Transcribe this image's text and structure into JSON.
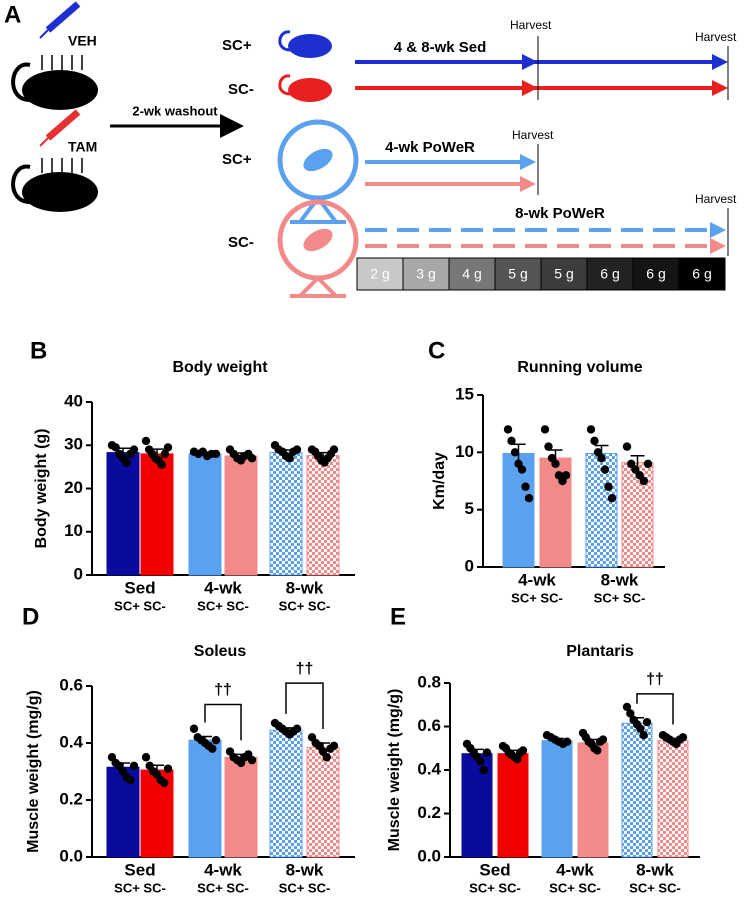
{
  "diagram": {
    "label": "A",
    "treatments": [
      "VEH",
      "TAM"
    ],
    "washout": "2-wk washout",
    "groups": [
      "SC+",
      "SC-",
      "SC+",
      "SC-"
    ],
    "arms": [
      "4 & 8-wk Sed",
      "4-wk PoWeR",
      "8-wk PoWeR"
    ],
    "harvest": [
      "Harvest",
      "Harvest",
      "Harvest",
      "Harvest"
    ],
    "schedule": [
      "2 g",
      "3 g",
      "4 g",
      "5 g",
      "5 g",
      "6 g",
      "6 g",
      "6 g"
    ]
  },
  "chart_data": [
    {
      "type": "bar",
      "panel": "B",
      "title": "Body weight",
      "ylabel": "Body weight (g)",
      "ylim": [
        0,
        40
      ],
      "yticks": [
        0,
        10,
        20,
        30,
        40
      ],
      "groups": [
        "Sed",
        "4-wk",
        "8-wk"
      ],
      "group_sublabels": [
        "SC+ SC-",
        "SC+ SC-",
        "SC+ SC-"
      ],
      "values": [
        28.3,
        28,
        28,
        27.5,
        28.3,
        27.6
      ],
      "errors": [
        1,
        1.1,
        0.4,
        0.7,
        0.6,
        0.7
      ],
      "colors": [
        "#0a0a9c",
        "#f20000",
        "#5aa2f0",
        "#f28a8a",
        "#5aa2f0",
        "#f28a8a"
      ],
      "patterned": [
        false,
        false,
        false,
        false,
        true,
        true
      ],
      "points": [
        [
          30,
          29.5,
          28,
          27,
          26,
          28,
          29
        ],
        [
          31,
          29,
          28,
          27,
          26.5,
          25.5,
          28,
          29.5
        ],
        [
          28.5,
          28,
          28.5,
          27.5,
          28,
          28
        ],
        [
          29,
          28,
          27,
          26.5,
          27.5,
          28,
          27
        ],
        [
          30,
          29,
          28.5,
          27.5,
          27,
          28.5,
          29
        ],
        [
          29,
          28.5,
          27.5,
          26.5,
          26,
          27,
          28,
          29
        ]
      ],
      "annotations": []
    },
    {
      "type": "bar",
      "panel": "C",
      "title": "Running volume",
      "ylabel": "Km/day",
      "ylim": [
        0,
        15
      ],
      "yticks": [
        0,
        5,
        10,
        15
      ],
      "groups": [
        "4-wk",
        "8-wk"
      ],
      "group_sublabels": [
        "SC+ SC-",
        "SC+ SC-"
      ],
      "values": [
        9.9,
        9.5,
        9.9,
        9.1
      ],
      "errors": [
        0.8,
        0.7,
        0.7,
        0.6
      ],
      "colors": [
        "#5aa2f0",
        "#f28a8a",
        "#5aa2f0",
        "#f28a8a"
      ],
      "patterned": [
        false,
        false,
        true,
        true
      ],
      "points": [
        [
          12,
          11,
          10,
          9,
          8.5,
          7,
          6
        ],
        [
          12,
          10.5,
          9.5,
          9,
          8,
          7.5,
          8
        ],
        [
          12,
          11,
          10,
          9.5,
          8.5,
          7,
          6
        ],
        [
          10.5,
          9,
          8.5,
          8,
          7.5,
          9
        ]
      ],
      "annotations": []
    },
    {
      "type": "bar",
      "panel": "D",
      "title": "Soleus",
      "ylabel": "Muscle weight (mg/g)",
      "ylim": [
        0,
        0.6
      ],
      "yticks": [
        {
          "value": 0,
          "label": "0.0"
        },
        0.2,
        0.4,
        0.6
      ],
      "groups": [
        "Sed",
        "4-wk",
        "8-wk"
      ],
      "group_sublabels": [
        "SC+ SC-",
        "SC+ SC-",
        "SC+ SC-"
      ],
      "values": [
        0.315,
        0.305,
        0.41,
        0.35,
        0.445,
        0.385
      ],
      "errors": [
        0.015,
        0.017,
        0.013,
        0.01,
        0.008,
        0.015
      ],
      "colors": [
        "#0a0a9c",
        "#f20000",
        "#5aa2f0",
        "#f28a8a",
        "#5aa2f0",
        "#f28a8a"
      ],
      "patterned": [
        false,
        false,
        false,
        false,
        true,
        true
      ],
      "points": [
        [
          0.35,
          0.33,
          0.32,
          0.3,
          0.28,
          0.27,
          0.32
        ],
        [
          0.35,
          0.32,
          0.3,
          0.29,
          0.27,
          0.26,
          0.31
        ],
        [
          0.45,
          0.42,
          0.41,
          0.4,
          0.39,
          0.38,
          0.41
        ],
        [
          0.37,
          0.35,
          0.34,
          0.33,
          0.35,
          0.36,
          0.34
        ],
        [
          0.47,
          0.46,
          0.45,
          0.44,
          0.43,
          0.44,
          0.45
        ],
        [
          0.42,
          0.4,
          0.39,
          0.37,
          0.35,
          0.38,
          0.39
        ]
      ],
      "annotations": [
        {
          "text": "††",
          "from": 2,
          "to": 3,
          "y": 0.535
        },
        {
          "text": "††",
          "from": 4,
          "to": 5,
          "y": 0.61
        }
      ]
    },
    {
      "type": "bar",
      "panel": "E",
      "title": "Plantaris",
      "ylabel": "Muscle weight (mg/g)",
      "ylim": [
        0,
        0.8
      ],
      "yticks": [
        {
          "value": 0,
          "label": "0.0"
        },
        0.2,
        0.4,
        0.6,
        0.8
      ],
      "groups": [
        "Sed",
        "4-wk",
        "8-wk"
      ],
      "group_sublabels": [
        "SC+ SC-",
        "SC+ SC-",
        "SC+ SC-"
      ],
      "values": [
        0.475,
        0.475,
        0.535,
        0.525,
        0.615,
        0.535
      ],
      "errors": [
        0.02,
        0.015,
        0.01,
        0.015,
        0.025,
        0.01
      ],
      "colors": [
        "#0a0a9c",
        "#f20000",
        "#5aa2f0",
        "#f28a8a",
        "#5aa2f0",
        "#f28a8a"
      ],
      "patterned": [
        false,
        false,
        false,
        false,
        true,
        true
      ],
      "points": [
        [
          0.52,
          0.5,
          0.48,
          0.46,
          0.44,
          0.4,
          0.48
        ],
        [
          0.51,
          0.5,
          0.48,
          0.47,
          0.46,
          0.45,
          0.48,
          0.49
        ],
        [
          0.56,
          0.55,
          0.54,
          0.53,
          0.52,
          0.53
        ],
        [
          0.57,
          0.55,
          0.53,
          0.52,
          0.5,
          0.49,
          0.53,
          0.54
        ],
        [
          0.69,
          0.66,
          0.63,
          0.61,
          0.59,
          0.56,
          0.62
        ],
        [
          0.56,
          0.55,
          0.54,
          0.53,
          0.52,
          0.54,
          0.55
        ]
      ],
      "annotations": [
        {
          "text": "††",
          "from": 4,
          "to": 5,
          "y": 0.75
        }
      ]
    }
  ]
}
